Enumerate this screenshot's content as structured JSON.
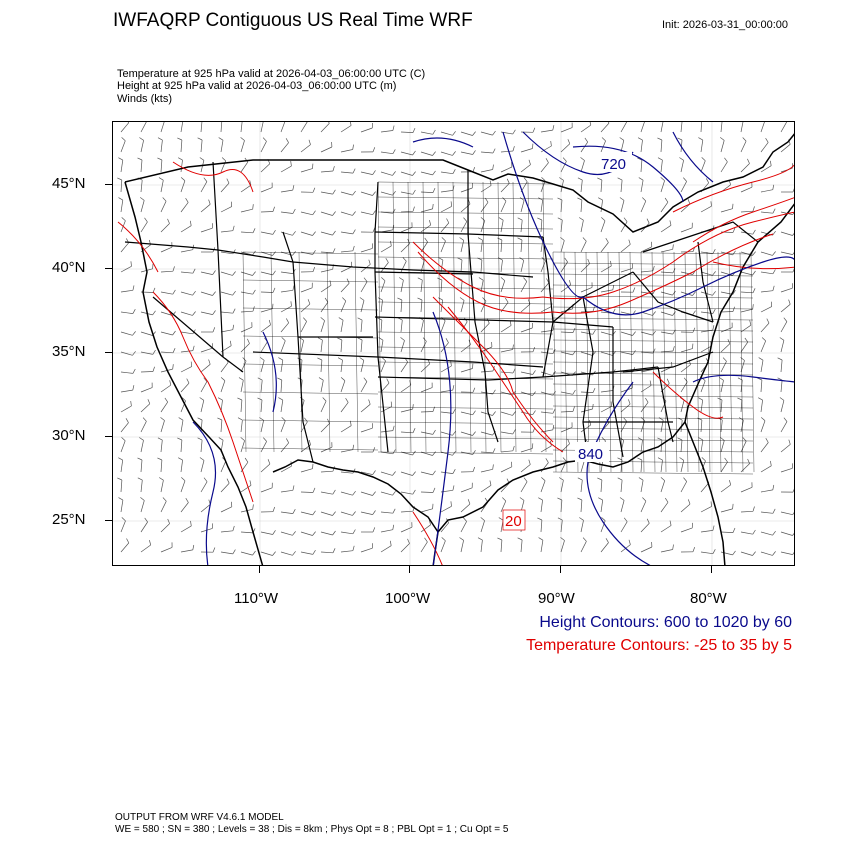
{
  "header": {
    "title": "IWFAQRP Contiguous US Real Time WRF",
    "init": "Init: 2026-03-31_00:00:00",
    "fields": [
      "Temperature at 925 hPa valid at 2026-04-03_06:00:00 UTC   (C)",
      "Height at 925 hPa valid at 2026-04-03_06:00:00 UTC   (m)",
      "Winds   (kts)"
    ]
  },
  "axes": {
    "lat_labels": [
      "45°N",
      "40°N",
      "35°N",
      "30°N",
      "25°N"
    ],
    "lon_labels": [
      "110°W",
      "100°W",
      "90°W",
      "80°W"
    ]
  },
  "map": {
    "contour_labels": {
      "height": [
        "720",
        "840"
      ],
      "temperature": [
        "20"
      ]
    },
    "colors": {
      "height": "#0a0a8c",
      "temperature": "#e00000",
      "boundaries": "#000000",
      "wind_barbs": "#555555"
    }
  },
  "legend": {
    "height": "Height Contours: 600 to 1020 by 60",
    "temperature": "Temperature Contours: -25 to 35 by 5"
  },
  "footer": {
    "line1": "OUTPUT FROM WRF V4.6.1 MODEL",
    "line2": "WE = 580 ; SN = 380 ; Levels = 38 ; Dis = 8km ; Phys Opt = 8 ; PBL Opt = 1 ; Cu Opt = 5"
  }
}
